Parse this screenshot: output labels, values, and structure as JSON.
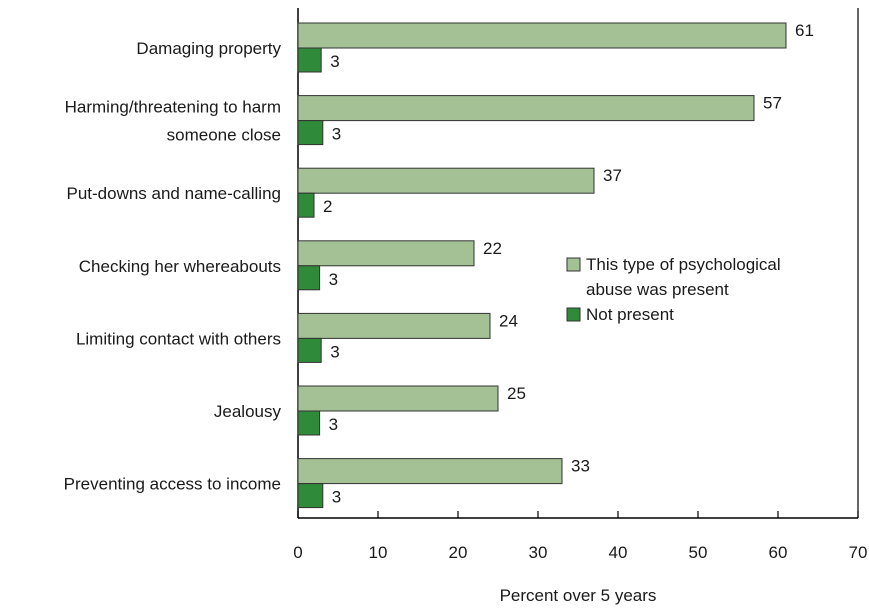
{
  "chart_data": {
    "type": "bar",
    "orientation": "horizontal",
    "categories": [
      [
        "Damaging property"
      ],
      [
        "Harming/threatening to harm",
        "someone close"
      ],
      [
        "Put-downs and name-calling"
      ],
      [
        "Checking her whereabouts"
      ],
      [
        "Limiting contact with others"
      ],
      [
        "Jealousy"
      ],
      [
        "Preventing access to income"
      ]
    ],
    "series": [
      {
        "name": [
          "This type of psychological",
          "abuse was present"
        ],
        "color": "#a3c195",
        "values": [
          61,
          57,
          37,
          22,
          24,
          25,
          33
        ],
        "display_values": [
          "61",
          "57",
          "37",
          "22",
          "24",
          "25",
          "33"
        ]
      },
      {
        "name": [
          "Not present"
        ],
        "color": "#2f8a3a",
        "values": [
          2.9,
          3.1,
          2.0,
          2.7,
          2.9,
          2.7,
          3.1
        ],
        "display_values": [
          "3",
          "3",
          "2",
          "3",
          "3",
          "3",
          "3"
        ]
      }
    ],
    "xlabel": "Percent over 5 years",
    "xlim": [
      0,
      70
    ],
    "xticks": [
      "0",
      "10",
      "20",
      "30",
      "40",
      "50",
      "60",
      "70"
    ],
    "legend_position": "right-center",
    "grid": false
  }
}
